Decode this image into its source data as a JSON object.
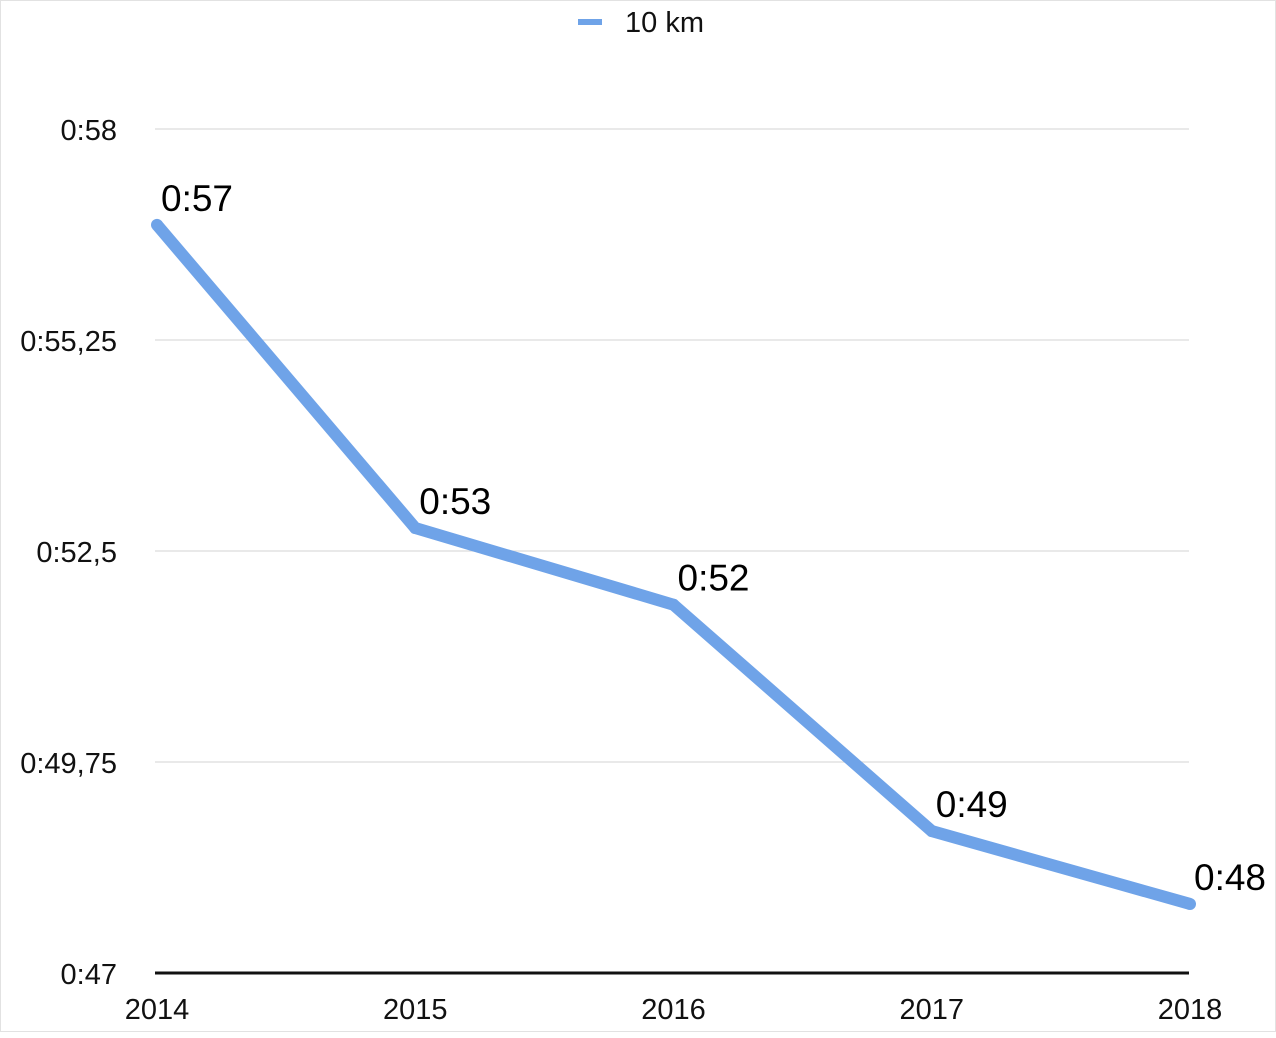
{
  "chart_data": {
    "type": "line",
    "title": "",
    "xlabel": "",
    "ylabel": "",
    "categories": [
      "2014",
      "2015",
      "2016",
      "2017",
      "2018"
    ],
    "series": [
      {
        "name": "10 km",
        "values": [
          56.75,
          52.8,
          51.8,
          48.85,
          47.9
        ],
        "labels": [
          "0:57",
          "0:53",
          "0:52",
          "0:49",
          "0:48"
        ],
        "color": "#6fa3e8"
      }
    ],
    "ylim": [
      47,
      58
    ],
    "y_ticks": [
      {
        "value": 47,
        "label": "0:47"
      },
      {
        "value": 49.75,
        "label": "0:49,75"
      },
      {
        "value": 52.5,
        "label": "0:52,5"
      },
      {
        "value": 55.25,
        "label": "0:55,25"
      },
      {
        "value": 58,
        "label": "0:58"
      }
    ],
    "grid": true,
    "legend_position": "top-center"
  }
}
